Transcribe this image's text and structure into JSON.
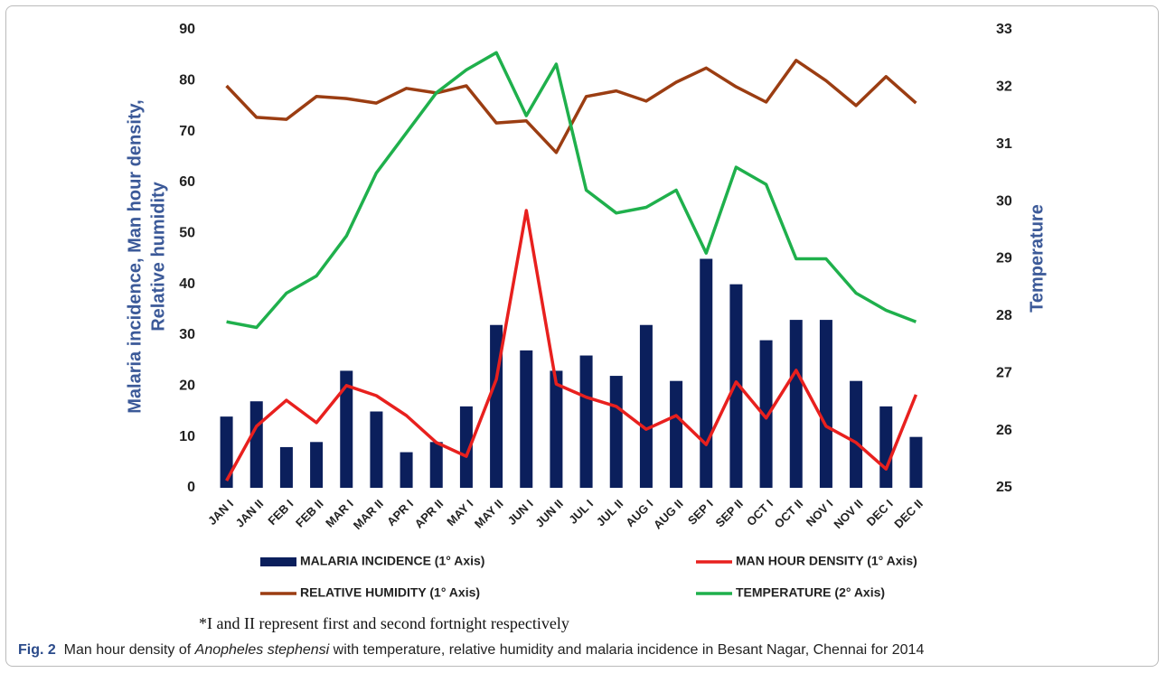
{
  "chart_data": {
    "type": "bar",
    "y_label_lines": [
      "Malaria incidence,  Man hour density,",
      "Relative humidity"
    ],
    "y2_label": "Temperature",
    "categories": [
      "JAN I",
      "JAN II",
      "FEB I",
      "FEB II",
      "MAR I",
      "MAR II",
      "APR I",
      "APR II",
      "MAY I",
      "MAY II",
      "JUN I",
      "JUN II",
      "JUL I",
      "JUL II",
      "AUG I",
      "AUG II",
      "SEP I",
      "SEP II",
      "OCT I",
      "OCT II",
      "NOV I",
      "NOV II",
      "DEC I",
      "DEC II"
    ],
    "series": [
      {
        "name": "MALARIA INCIDENCE (1° Axis)",
        "type": "bar",
        "color": "#0b1f5c",
        "values": [
          14,
          17,
          8,
          9,
          23,
          15,
          7,
          9,
          16,
          32,
          27,
          23,
          26,
          22,
          32,
          21,
          45,
          40,
          29,
          33,
          33,
          21,
          16,
          10
        ]
      },
      {
        "name": "MAN HOUR DENSITY (1° Axis)",
        "type": "line",
        "color": "#e8201e",
        "values": [
          1.4,
          12.1,
          17.2,
          12.8,
          20.1,
          18.1,
          14.2,
          8.9,
          6.2,
          21.3,
          54.5,
          20.4,
          17.8,
          16,
          11.5,
          14.2,
          8.5,
          20.8,
          13.7,
          23.1,
          12.1,
          8.9,
          3.7,
          18.3
        ]
      },
      {
        "name": "RELATIVE HUMIDITY (1° Axis)",
        "type": "line",
        "color": "#9b3d12",
        "values": [
          79,
          72.8,
          72.4,
          76.9,
          76.5,
          75.6,
          78.5,
          77.6,
          79,
          71.7,
          72.1,
          65.9,
          76.9,
          78,
          76,
          79.7,
          82.5,
          78.8,
          75.8,
          84,
          80,
          75.1,
          80.8,
          75.6
        ]
      },
      {
        "name": "TEMPERATURE (2° Axis)",
        "type": "line",
        "axis": "y2",
        "color": "#1fb04c",
        "values": [
          27.9,
          27.8,
          28.4,
          28.7,
          29.4,
          30.5,
          31.2,
          31.9,
          32.3,
          32.6,
          31.5,
          32.4,
          30.2,
          29.8,
          29.9,
          30.2,
          29.1,
          30.6,
          30.3,
          29,
          29,
          28.4,
          28.1,
          27.9
        ]
      }
    ],
    "ylim": [
      0,
      90
    ],
    "yticks": [
      0,
      10,
      20,
      30,
      40,
      50,
      60,
      70,
      80,
      90
    ],
    "y2lim": [
      25,
      33
    ],
    "y2ticks": [
      25,
      26,
      27,
      28,
      29,
      30,
      31,
      32,
      33
    ],
    "footnote": "*I and II represent first and second fortnight respectively",
    "caption": {
      "label": "Fig. 2",
      "text_before": "Man hour density of ",
      "italic": "Anopheles stephensi",
      "text_after": " with temperature, relative humidity and malaria incidence in Besant Nagar, Chennai for 2014"
    }
  }
}
